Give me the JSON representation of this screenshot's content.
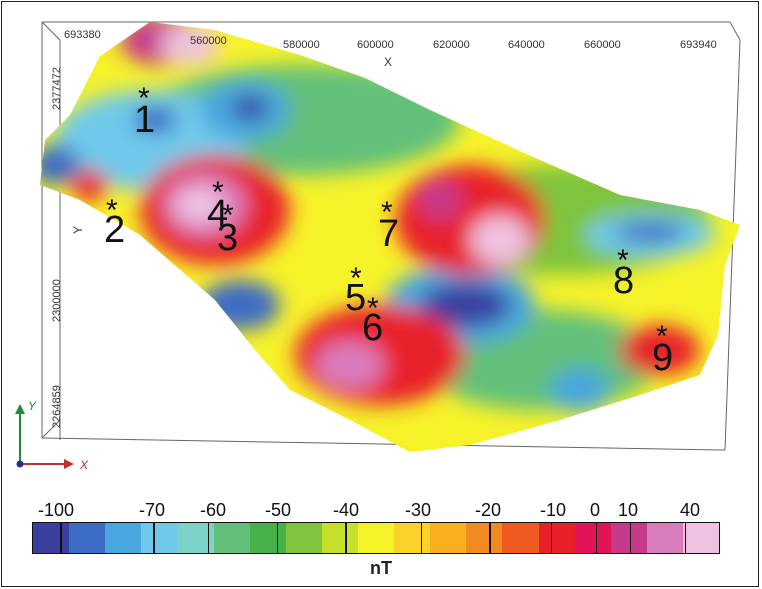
{
  "axes": {
    "x_name": "X",
    "y_name": "Y",
    "x_ticks": [
      "693380",
      "560000",
      "580000",
      "600000",
      "620000",
      "640000",
      "660000",
      "693940"
    ],
    "y_ticks": [
      "2377472",
      "2300000",
      "2264859"
    ],
    "triad_x": "X",
    "triad_y": "Y"
  },
  "sites": [
    {
      "label": "1",
      "marker": "*"
    },
    {
      "label": "2",
      "marker": "*"
    },
    {
      "label": "3",
      "marker": "*"
    },
    {
      "label": "4",
      "marker": "*"
    },
    {
      "label": "5",
      "marker": "*"
    },
    {
      "label": "6",
      "marker": "*"
    },
    {
      "label": "7",
      "marker": "*"
    },
    {
      "label": "8",
      "marker": "*"
    },
    {
      "label": "9",
      "marker": "*"
    }
  ],
  "legend": {
    "unit": "nT",
    "labels": [
      "-100",
      "-70",
      "-60",
      "-50",
      "-40",
      "-30",
      "-20",
      "-10",
      "0",
      "10",
      "40"
    ],
    "colors": [
      "#3a3fa0",
      "#3d6cc4",
      "#4aa6de",
      "#6fc9ea",
      "#7ed3c8",
      "#62c07a",
      "#48b048",
      "#7ec43c",
      "#c6e02c",
      "#f6f22a",
      "#fbd22a",
      "#f8b020",
      "#f28a22",
      "#ee5a20",
      "#e8202a",
      "#e01456",
      "#c63a8c",
      "#d97cbc",
      "#eec2e0"
    ]
  },
  "colors": {
    "anomaly_low": "#3a3fa0",
    "anomaly_mid": "#f6f22a",
    "anomaly_high": "#eec2e0"
  }
}
